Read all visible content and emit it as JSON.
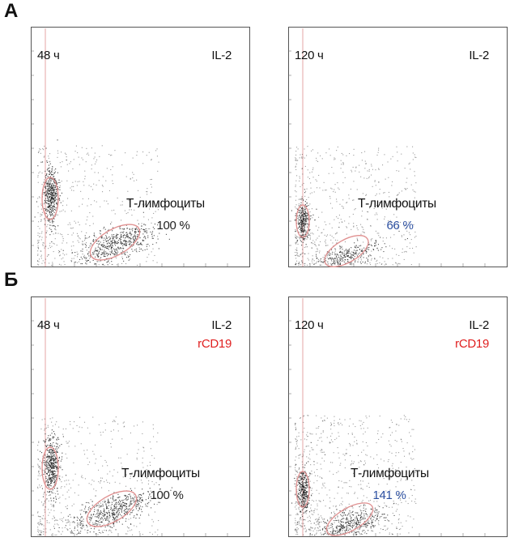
{
  "sections": [
    {
      "letter": "А",
      "panels": [
        {
          "time": "48 ч",
          "cytokine": "IL-2",
          "factor": "",
          "population": "Т-лимфоциты",
          "percent": "100 %",
          "percent_color": "#222222"
        },
        {
          "time": "120 ч",
          "cytokine": "IL-2",
          "factor": "",
          "population": "Т-лимфоциты",
          "percent": "66 %",
          "percent_color": "#2b4fa0"
        }
      ]
    },
    {
      "letter": "Б",
      "panels": [
        {
          "time": "48 ч",
          "cytokine": "IL-2",
          "factor": "rCD19",
          "population": "Т-лимфоциты",
          "percent": "100 %",
          "percent_color": "#222222"
        },
        {
          "time": "120 ч",
          "cytokine": "IL-2",
          "factor": "rCD19",
          "population": "Т-лимфоциты",
          "percent": "141 %",
          "percent_color": "#2b4fa0"
        }
      ]
    }
  ],
  "colors": {
    "factor": "#e02020",
    "gate": "#e09090",
    "dots": "#222222",
    "frame": "#555555"
  },
  "chart_data": [
    {
      "type": "scatter",
      "section": "А",
      "time": "48 ч",
      "cytokine": "IL-2",
      "gated_population": "Т-лимфоциты",
      "relative_count_percent": 100
    },
    {
      "type": "scatter",
      "section": "А",
      "time": "120 ч",
      "cytokine": "IL-2",
      "gated_population": "Т-лимфоциты",
      "relative_count_percent": 66
    },
    {
      "type": "scatter",
      "section": "Б",
      "time": "48 ч",
      "cytokine": "IL-2",
      "factor": "rCD19",
      "gated_population": "Т-лимфоциты",
      "relative_count_percent": 100
    },
    {
      "type": "scatter",
      "section": "Б",
      "time": "120 ч",
      "cytokine": "IL-2",
      "factor": "rCD19",
      "gated_population": "Т-лимфоциты",
      "relative_count_percent": 141
    }
  ]
}
